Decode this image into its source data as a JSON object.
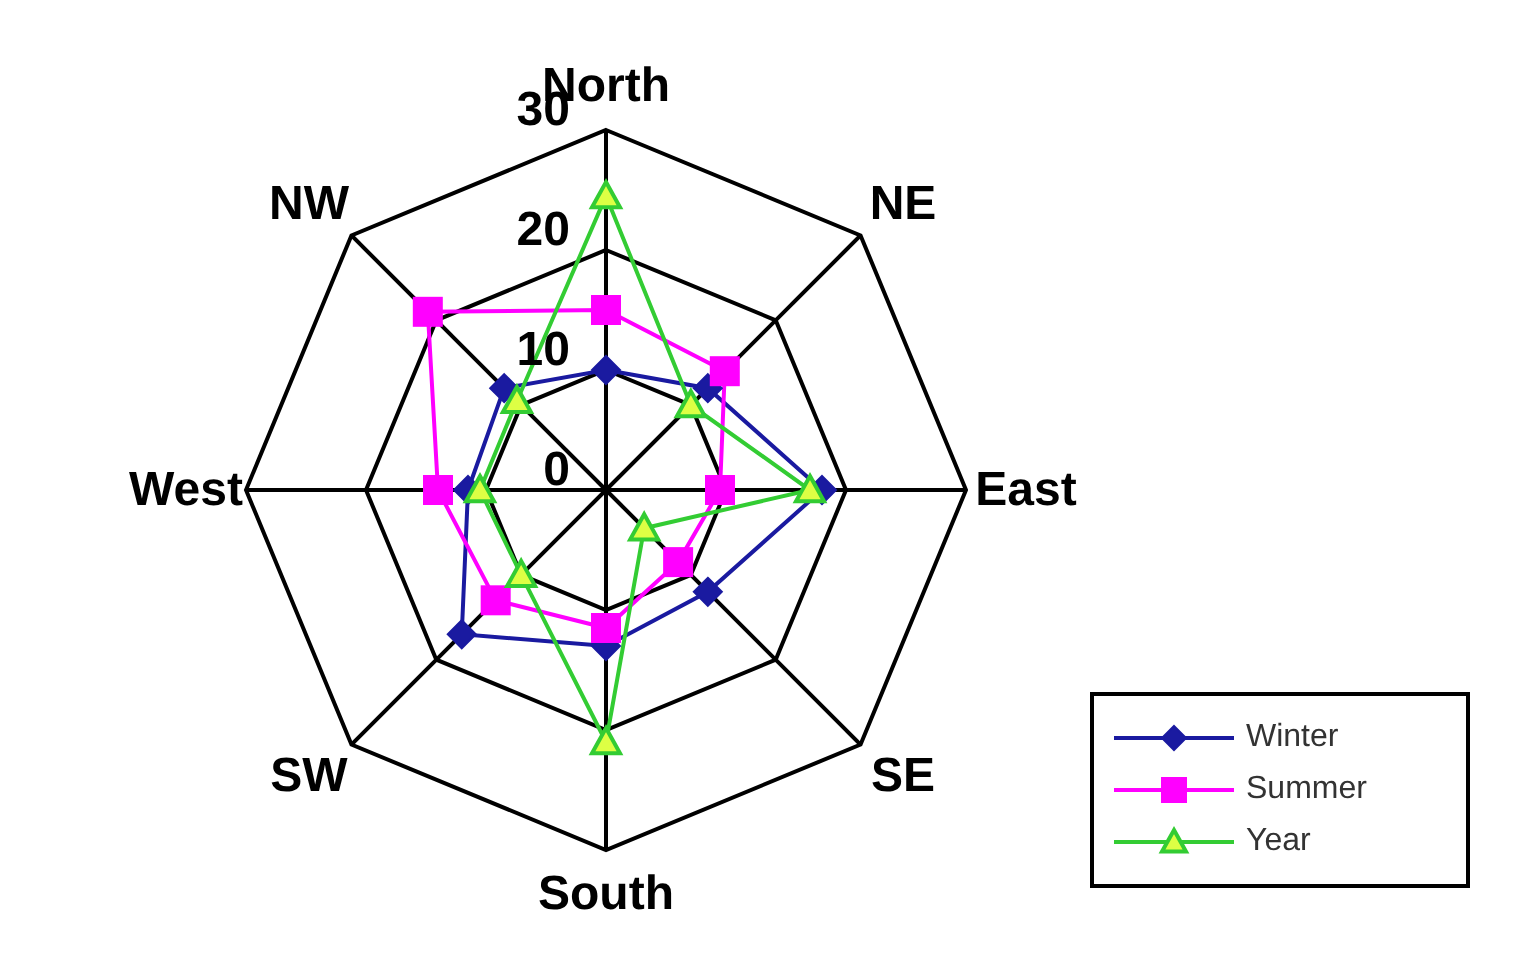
{
  "chart_data": {
    "type": "radar",
    "categories": [
      "North",
      "NE",
      "East",
      "SE",
      "South",
      "SW",
      "West",
      "NW"
    ],
    "series": [
      {
        "name": "Winter",
        "color": "#1a1aa0",
        "marker": "diamond",
        "values": [
          10,
          12,
          18,
          12,
          13,
          17,
          11.5,
          12
        ]
      },
      {
        "name": "Summer",
        "color": "#ff00ff",
        "marker": "square",
        "values": [
          15,
          14,
          9.5,
          8.5,
          11.5,
          13,
          14,
          21
        ]
      },
      {
        "name": "Year",
        "color": "#33cc33",
        "marker": "triangle",
        "values": [
          24.5,
          10,
          17,
          4.5,
          21,
          10,
          10.5,
          10.5
        ]
      }
    ],
    "ylim": [
      0,
      30
    ],
    "yticks": [
      0,
      10,
      20,
      30
    ],
    "grid": true,
    "legend": "bottom right"
  }
}
